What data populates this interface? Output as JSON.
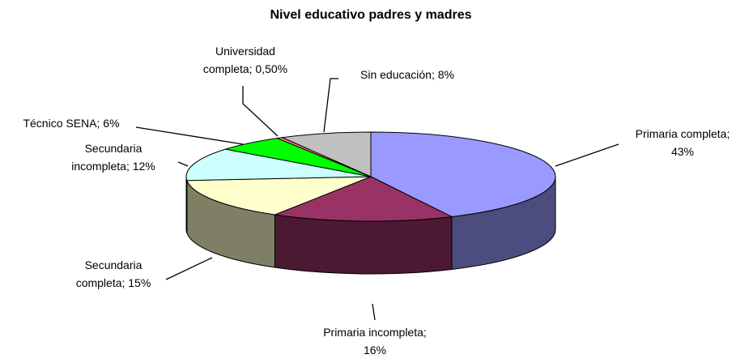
{
  "chart_data": {
    "type": "pie3d",
    "title": "Nivel educativo padres y madres",
    "values": [
      43,
      16,
      15,
      12,
      6,
      0.5,
      8
    ],
    "value_labels": [
      [
        "Primaria completa;",
        "43%"
      ],
      [
        "Primaria incompleta;",
        "16%"
      ],
      [
        "Secundaria",
        "completa; 15%"
      ],
      [
        "Secundaria",
        "incompleta; 12%"
      ],
      [
        "Técnico SENA; 6%"
      ],
      [
        "Universidad",
        "completa; 0,50%"
      ],
      [
        "Sin educación; 8%"
      ]
    ],
    "colors": [
      "#9999ff",
      "#993366",
      "#ffffcc",
      "#ccffff",
      "#00ff00",
      "#ff8080",
      "#c0c0c0"
    ]
  }
}
